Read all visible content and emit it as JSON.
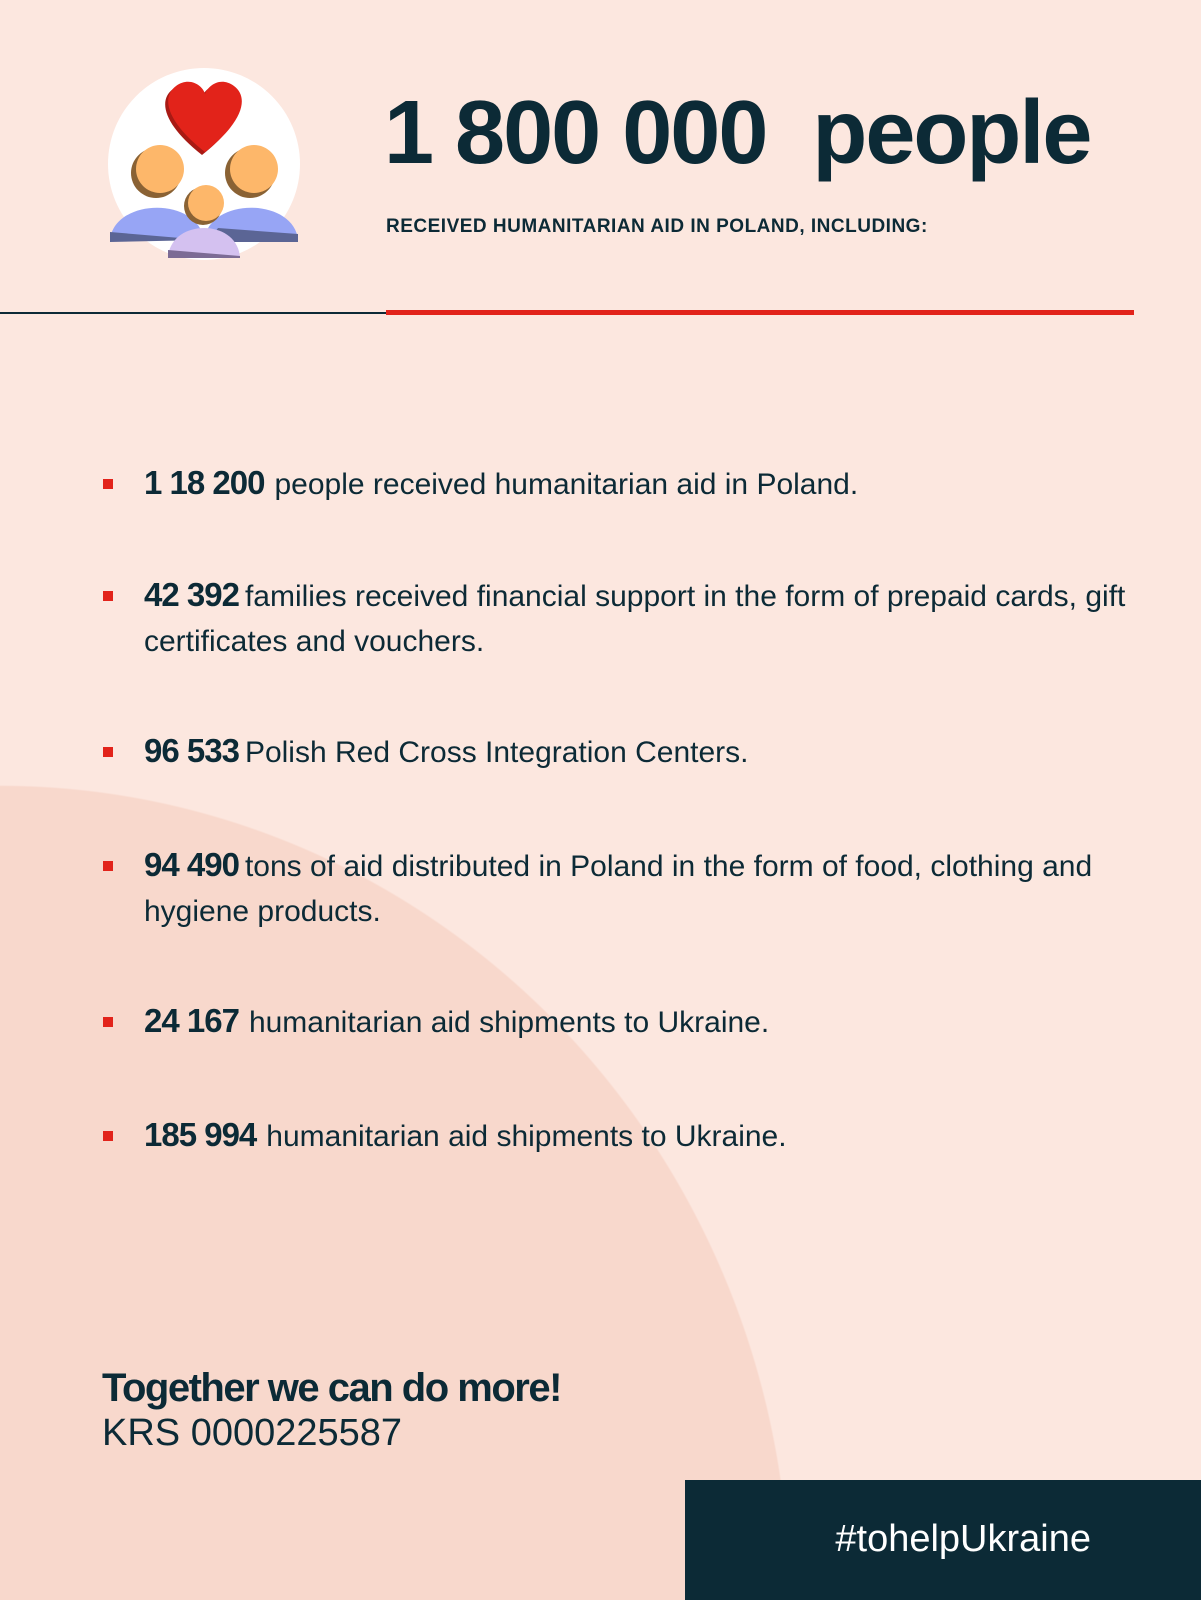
{
  "colors": {
    "background": "#fce7df",
    "arc": "#f8d8cc",
    "dark": "#0c2a36",
    "accent": "#e2231a"
  },
  "header": {
    "icon": "family-heart-icon",
    "headline": "1 800 000  people",
    "subtitle": "RECEIVED HUMANITARIAN AID IN POLAND, INCLUDING:"
  },
  "stats": [
    {
      "number": "1 18 200",
      "text": "people received humanitarian aid in Poland."
    },
    {
      "number": "42 392",
      "text": "families received financial support in the form of prepaid cards, gift certificates and vouchers."
    },
    {
      "number": "96 533",
      "text": "Polish Red Cross Integration Centers."
    },
    {
      "number": "94 490",
      "text": "tons of aid distributed in Poland in the form of food, clothing and hygiene products."
    },
    {
      "number": "24 167",
      "text": "humanitarian aid shipments to Ukraine."
    },
    {
      "number": "185 994",
      "text": "humanitarian aid shipments to Ukraine."
    }
  ],
  "footer": {
    "cta": "Together we can do more!",
    "krs": "KRS 0000225587",
    "hashtag": "#tohelpUkraine"
  }
}
